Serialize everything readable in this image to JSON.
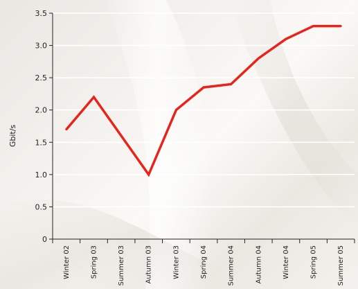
{
  "chart_data": {
    "type": "line",
    "title": "",
    "xlabel": "",
    "ylabel": "Gbit/s",
    "ylim": [
      0,
      3.5
    ],
    "yticks": [
      "0",
      "0.5",
      "1.0",
      "1.5",
      "2.0",
      "2.5",
      "3.0",
      "3.5"
    ],
    "grid": true,
    "categories": [
      "Winter 02",
      "Spring 03",
      "Summer 03",
      "Autumn 03",
      "Winter 03",
      "Spring 04",
      "Summer 04",
      "Autumn 04",
      "Winter 04",
      "Spring 05",
      "Summer 05"
    ],
    "values": [
      1.7,
      2.2,
      1.6,
      1.0,
      2.0,
      2.35,
      2.4,
      2.8,
      3.1,
      3.3,
      3.3
    ],
    "series_color": "#e8231a",
    "grid_color": "#ffffff",
    "axis_color": "#222222"
  }
}
